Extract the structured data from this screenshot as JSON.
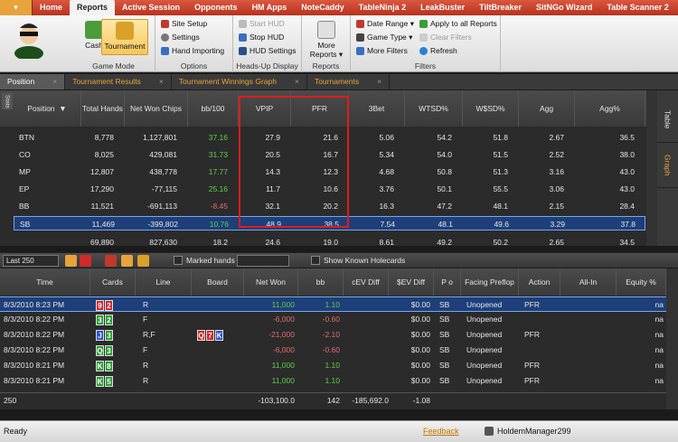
{
  "app_menu": "▾",
  "ribbon_tabs": [
    "Home",
    "Reports",
    "Active Session",
    "Opponents",
    "HM Apps",
    "NoteCaddy",
    "TableNinja 2",
    "LeakBuster",
    "TiltBreaker",
    "SitNGo Wizard",
    "Table Scanner 2"
  ],
  "ribbon": {
    "game_mode": {
      "label": "Game Mode",
      "cash": "Cash",
      "tournament": "Tournament"
    },
    "options": {
      "label": "Options",
      "site_setup": "Site Setup",
      "settings": "Settings",
      "hand_importing": "Hand Importing"
    },
    "hud": {
      "label": "Heads-Up Display",
      "start": "Start HUD",
      "stop": "Stop HUD",
      "settings": "HUD Settings"
    },
    "reports": {
      "label": "Reports",
      "more": "More Reports ▾"
    },
    "filters": {
      "label": "Filters",
      "date_range": "Date Range ▾",
      "game_type": "Game Type ▾",
      "more_filters": "More Filters",
      "apply_all": "Apply to all Reports",
      "clear": "Clear Filters",
      "refresh": "Refresh"
    }
  },
  "doc_tabs": [
    "Position",
    "Tournament Results",
    "Tournament Winnings Graph",
    "Tournaments"
  ],
  "close_glyph": "×",
  "side_label": "Stats",
  "vertical_tabs": [
    "Table",
    "Graph"
  ],
  "stats": {
    "columns": [
      "Position",
      "Total Hands",
      "Net Won Chips",
      "bb/100",
      "VPIP",
      "PFR",
      "3Bet",
      "WTSD%",
      "W$SD%",
      "Agg",
      "Agg%"
    ],
    "sort_glyph": "▼",
    "rows": [
      [
        "BTN",
        "8,778",
        "1,127,801",
        "37.16",
        "27.9",
        "21.6",
        "5.06",
        "54.2",
        "51.8",
        "2.67",
        "36.5"
      ],
      [
        "CO",
        "8,025",
        "429,081",
        "31.73",
        "20.5",
        "16.7",
        "5.34",
        "54.0",
        "51.5",
        "2.52",
        "38.0"
      ],
      [
        "MP",
        "12,807",
        "438,778",
        "17.77",
        "14.3",
        "12.3",
        "4.68",
        "50.8",
        "51.3",
        "3.16",
        "43.0"
      ],
      [
        "EP",
        "17,290",
        "-77,115",
        "25.16",
        "11.7",
        "10.6",
        "3.76",
        "50.1",
        "55.5",
        "3.06",
        "43.0"
      ],
      [
        "BB",
        "11,521",
        "-691,113",
        "-8.45",
        "32.1",
        "20.2",
        "16.3",
        "47.2",
        "48.1",
        "2.15",
        "28.4"
      ],
      [
        "SB",
        "11,469",
        "-399,802",
        "10.76",
        "48.9",
        "38.5",
        "7.54",
        "48.1",
        "49.6",
        "3.29",
        "37.8"
      ]
    ],
    "bb_colors": [
      "green",
      "green",
      "green",
      "green",
      "red",
      "green"
    ],
    "totals": [
      "",
      "69,890",
      "827,630",
      "18.2",
      "24.6",
      "19.0",
      "8.61",
      "49.2",
      "50.2",
      "2.65",
      "34.5"
    ]
  },
  "hands_toolbar": {
    "limit": "Last 250",
    "marked_hands": "Marked hands",
    "show_known": "Show Known Holecards"
  },
  "hands": {
    "columns": [
      "Time",
      "Cards",
      "Line",
      "Board",
      "Net Won",
      "bb",
      "cEV Diff",
      "$EV Diff",
      "P o",
      "Facing Preflop",
      "Action",
      "All-In",
      "Equity %"
    ],
    "rows": [
      {
        "time": "8/3/2010 8:23 PM",
        "cards": [
          [
            "9",
            "h"
          ],
          [
            "2",
            "h"
          ]
        ],
        "line": "R",
        "board": [],
        "net": "11,000",
        "bb": "1.10",
        "cev": "",
        "sev": "$0.00",
        "pos": "SB",
        "facing": "Unopened",
        "action": "PFR",
        "allin": "",
        "equity": "na",
        "sign": "green"
      },
      {
        "time": "8/3/2010 8:22 PM",
        "cards": [
          [
            "3",
            "c"
          ],
          [
            "2",
            "c"
          ]
        ],
        "line": "F",
        "board": [],
        "net": "-6,000",
        "bb": "-0.60",
        "cev": "",
        "sev": "$0.00",
        "pos": "SB",
        "facing": "Unopened",
        "action": "",
        "allin": "",
        "equity": "na",
        "sign": "red"
      },
      {
        "time": "8/3/2010 8:22 PM",
        "cards": [
          [
            "J",
            "d"
          ],
          [
            "3",
            "c"
          ]
        ],
        "line": "R,F",
        "board": [
          [
            "Q",
            "h"
          ],
          [
            "7",
            "h"
          ],
          [
            "K",
            "d"
          ]
        ],
        "net": "-21,000",
        "bb": "-2.10",
        "cev": "",
        "sev": "$0.00",
        "pos": "SB",
        "facing": "Unopened",
        "action": "PFR",
        "allin": "",
        "equity": "na",
        "sign": "red"
      },
      {
        "time": "8/3/2010 8:22 PM",
        "cards": [
          [
            "Q",
            "c"
          ],
          [
            "3",
            "c"
          ]
        ],
        "line": "F",
        "board": [],
        "net": "-6,000",
        "bb": "-0.60",
        "cev": "",
        "sev": "$0.00",
        "pos": "SB",
        "facing": "Unopened",
        "action": "",
        "allin": "",
        "equity": "na",
        "sign": "red"
      },
      {
        "time": "8/3/2010 8:21 PM",
        "cards": [
          [
            "K",
            "c"
          ],
          [
            "8",
            "c"
          ]
        ],
        "line": "R",
        "board": [],
        "net": "11,000",
        "bb": "1.10",
        "cev": "",
        "sev": "$0.00",
        "pos": "SB",
        "facing": "Unopened",
        "action": "PFR",
        "allin": "",
        "equity": "na",
        "sign": "green"
      },
      {
        "time": "8/3/2010 8:21 PM",
        "cards": [
          [
            "K",
            "c"
          ],
          [
            "5",
            "c"
          ]
        ],
        "line": "R",
        "board": [],
        "net": "11,000",
        "bb": "1.10",
        "cev": "",
        "sev": "$0.00",
        "pos": "SB",
        "facing": "Unopened",
        "action": "PFR",
        "allin": "",
        "equity": "na",
        "sign": "green"
      }
    ],
    "totals": {
      "count": "250",
      "net": "-103,100.0",
      "bb": "142",
      "cev": "-185,692.0",
      "sev": "-1.08"
    }
  },
  "status": {
    "ready": "Ready",
    "feedback": "Feedback",
    "user": "HoldemManager299"
  },
  "colors": {
    "ribbon_red": "#c0392b",
    "accent_orange": "#e8a33a",
    "selection": "#1e3f7a",
    "positive": "#5fcf47",
    "negative": "#e46b6b",
    "highlight_box": "#e01b1b"
  }
}
